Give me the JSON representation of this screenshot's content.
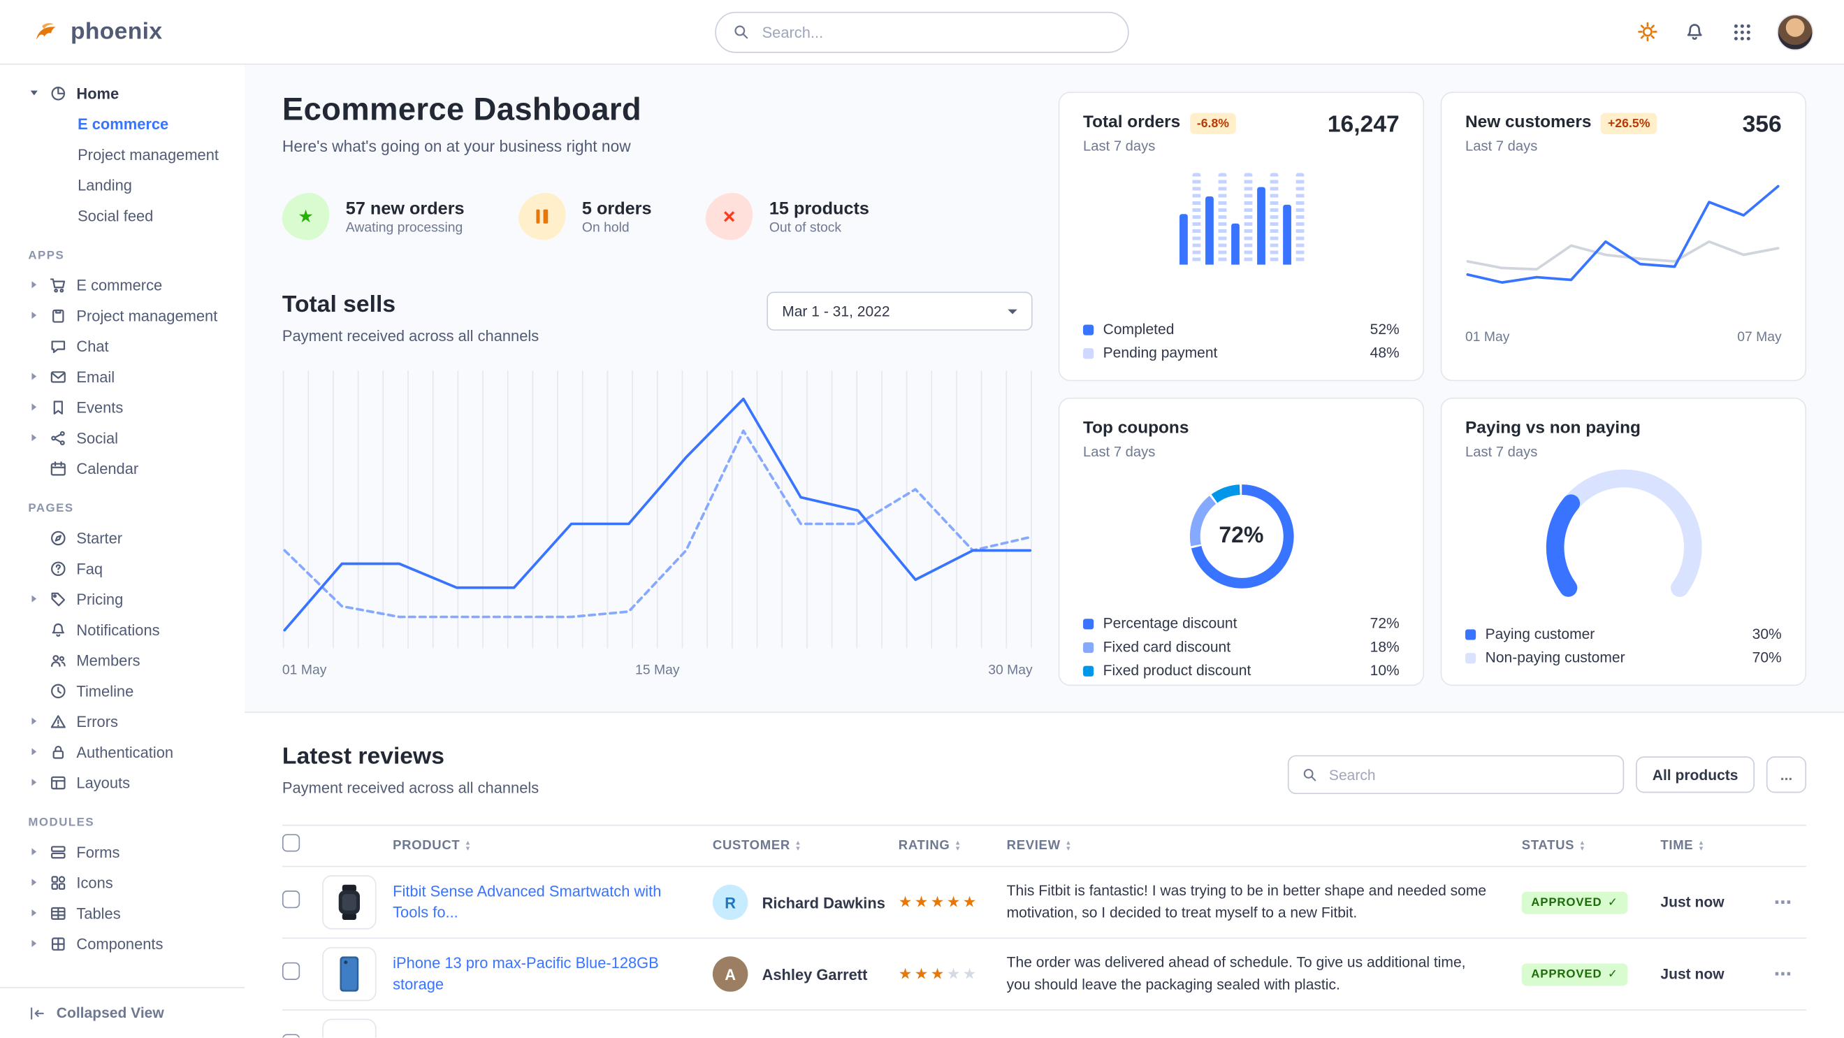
{
  "palette": {
    "primary": "#3874ff",
    "success": "#25b003",
    "warning": "#e5780b",
    "danger": "#fa3b1d",
    "warning_badge_bg": "#ffefca",
    "warning_badge_text": "#bc3803",
    "approved_bg": "#d9fbd0",
    "approved_text": "#1c6c09",
    "border": "#e3e6ed"
  },
  "topbar": {
    "brand": "phoenix",
    "search_placeholder": "Search..."
  },
  "sidebar": {
    "home": {
      "label": "Home",
      "items": [
        {
          "label": "E commerce",
          "active": true
        },
        {
          "label": "Project management"
        },
        {
          "label": "Landing"
        },
        {
          "label": "Social feed"
        }
      ]
    },
    "sections": [
      {
        "title": "APPS",
        "items": [
          {
            "label": "E commerce",
            "icon": "cart",
            "caret": true
          },
          {
            "label": "Project management",
            "icon": "clipboard",
            "caret": true
          },
          {
            "label": "Chat",
            "icon": "chat",
            "caret": false
          },
          {
            "label": "Email",
            "icon": "mail",
            "caret": true
          },
          {
            "label": "Events",
            "icon": "bookmark",
            "caret": true
          },
          {
            "label": "Social",
            "icon": "share",
            "caret": true
          },
          {
            "label": "Calendar",
            "icon": "calendar",
            "caret": false
          }
        ]
      },
      {
        "title": "PAGES",
        "items": [
          {
            "label": "Starter",
            "icon": "compass",
            "caret": false
          },
          {
            "label": "Faq",
            "icon": "help",
            "caret": false
          },
          {
            "label": "Pricing",
            "icon": "tag",
            "caret": true
          },
          {
            "label": "Notifications",
            "icon": "bell",
            "caret": false
          },
          {
            "label": "Members",
            "icon": "users",
            "caret": false
          },
          {
            "label": "Timeline",
            "icon": "clock",
            "caret": false
          },
          {
            "label": "Errors",
            "icon": "alert",
            "caret": true
          },
          {
            "label": "Authentication",
            "icon": "lock",
            "caret": true
          },
          {
            "label": "Layouts",
            "icon": "layout",
            "caret": true
          }
        ]
      },
      {
        "title": "MODULES",
        "items": [
          {
            "label": "Forms",
            "icon": "form",
            "caret": true
          },
          {
            "label": "Icons",
            "icon": "shapes",
            "caret": true
          },
          {
            "label": "Tables",
            "icon": "table",
            "caret": true
          },
          {
            "label": "Components",
            "icon": "puzzle",
            "caret": true
          }
        ]
      }
    ],
    "collapse_label": "Collapsed View"
  },
  "page": {
    "title": "Ecommerce Dashboard",
    "subtitle": "Here's what's going on at your business right now"
  },
  "stats": [
    {
      "value": "57 new orders",
      "caption": "Awating processing",
      "icon": "star",
      "color": "#25b003",
      "bg": "#d9fbd0"
    },
    {
      "value": "5 orders",
      "caption": "On hold",
      "icon": "pause",
      "color": "#e5780b",
      "bg": "#ffefca"
    },
    {
      "value": "15 products",
      "caption": "Out of stock",
      "icon": "x",
      "color": "#fa3b1d",
      "bg": "#ffe0db"
    }
  ],
  "total_sells": {
    "title": "Total sells",
    "subtitle": "Payment received across all channels",
    "date_range": "Mar 1 - 31, 2022"
  },
  "chart_data": [
    {
      "id": "total-sells",
      "type": "line",
      "title": "Total sells",
      "x_labels": [
        "01 May",
        "15 May",
        "30 May"
      ],
      "ylim": [
        0,
        100
      ],
      "grid": true,
      "series": [
        {
          "name": "dashed",
          "style": "dashed",
          "color": "#85a9ff",
          "values": [
            35,
            14,
            10,
            10,
            10,
            10,
            12,
            35,
            80,
            45,
            45,
            58,
            35,
            40
          ]
        },
        {
          "name": "solid",
          "style": "solid",
          "color": "#3874ff",
          "values": [
            5,
            30,
            30,
            21,
            21,
            45,
            45,
            70,
            92,
            55,
            50,
            24,
            35,
            35
          ]
        }
      ]
    },
    {
      "id": "total-orders",
      "type": "bar",
      "title": "Total orders",
      "delta": "-6.8%",
      "period": "Last 7 days",
      "total": "16,247",
      "values": [
        55,
        100,
        75,
        100,
        45,
        100,
        85,
        100,
        65,
        100
      ],
      "legend": [
        {
          "label": "Completed",
          "value": "52%",
          "color": "#3874ff"
        },
        {
          "label": "Pending payment",
          "value": "48%",
          "color": "#cfd9ff"
        }
      ]
    },
    {
      "id": "new-customers",
      "type": "line",
      "title": "New customers",
      "delta": "+26.5%",
      "period": "Last 7 days",
      "total": "356",
      "x_labels": [
        "01 May",
        "07 May"
      ],
      "series": [
        {
          "name": "series-2",
          "style": "solid",
          "color": "#d0d5dd",
          "values": [
            40,
            35,
            34,
            52,
            45,
            42,
            40,
            55,
            45,
            50
          ]
        },
        {
          "name": "series-1",
          "style": "solid",
          "color": "#3874ff",
          "values": [
            30,
            24,
            28,
            26,
            55,
            38,
            36,
            85,
            75,
            97
          ]
        }
      ]
    },
    {
      "id": "top-coupons",
      "type": "donut",
      "title": "Top coupons",
      "period": "Last 7 days",
      "center_label": "72%",
      "segments": [
        {
          "label": "Percentage discount",
          "value": 72,
          "pct": "72%",
          "color": "#3874ff"
        },
        {
          "label": "Fixed card discount",
          "value": 18,
          "pct": "18%",
          "color": "#85a9ff"
        },
        {
          "label": "Fixed product discount",
          "value": 10,
          "pct": "10%",
          "color": "#0097eb"
        }
      ]
    },
    {
      "id": "paying-gauge",
      "type": "gauge",
      "title": "Paying vs non paying",
      "period": "Last 7 days",
      "segments": [
        {
          "label": "Paying customer",
          "value": 30,
          "pct": "30%",
          "color": "#3874ff"
        },
        {
          "label": "Non-paying customer",
          "value": 70,
          "pct": "70%",
          "color": "#d9e2ff"
        }
      ]
    }
  ],
  "reviews": {
    "title": "Latest reviews",
    "subtitle": "Payment received across all channels",
    "search_placeholder": "Search",
    "all_products_label": "All products",
    "more_label": "...",
    "columns": [
      "PRODUCT",
      "CUSTOMER",
      "RATING",
      "REVIEW",
      "STATUS",
      "TIME"
    ],
    "rows": [
      {
        "product": "Fitbit Sense Advanced Smartwatch with Tools fo...",
        "customer": "Richard Dawkins",
        "initial": "R",
        "avatar_bg": "#c7ebff",
        "avatar_color": "#1e78c0",
        "rating": 5,
        "review": "This Fitbit is fantastic! I was trying to be in better shape and needed some motivation, so I decided to treat myself to a new Fitbit.",
        "status": "APPROVED",
        "time": "Just now"
      },
      {
        "product": "iPhone 13 pro max-Pacific Blue-128GB storage",
        "customer": "Ashley Garrett",
        "initial": "A",
        "avatar_bg": "#9c7e62",
        "avatar_color": "#ffffff",
        "rating": 3,
        "review": "The order was delivered ahead of schedule. To give us additional time, you should leave the packaging sealed with plastic.",
        "status": "APPROVED",
        "time": "Just now"
      }
    ]
  }
}
